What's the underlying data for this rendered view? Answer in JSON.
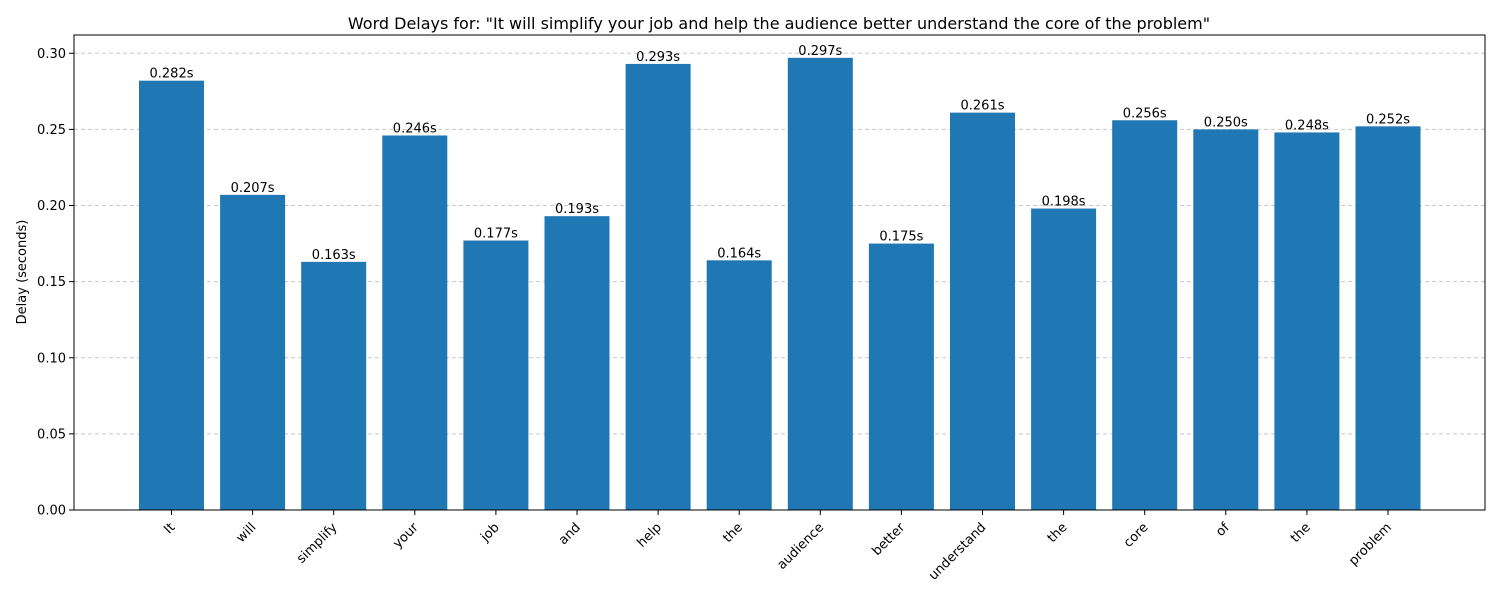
{
  "chart_data": {
    "type": "bar",
    "title": "Word Delays for: \"It will simplify your job and help the audience better understand the core of the problem\"",
    "xlabel": "",
    "ylabel": "Delay (seconds)",
    "categories": [
      "It",
      "will",
      "simplify",
      "your",
      "job",
      "and",
      "help",
      "the",
      "audience",
      "better",
      "understand",
      "the",
      "core",
      "of",
      "the",
      "problem"
    ],
    "values": [
      0.282,
      0.207,
      0.163,
      0.246,
      0.177,
      0.193,
      0.293,
      0.164,
      0.297,
      0.175,
      0.261,
      0.198,
      0.256,
      0.25,
      0.248,
      0.252
    ],
    "value_labels": [
      "0.282s",
      "0.207s",
      "0.163s",
      "0.246s",
      "0.177s",
      "0.193s",
      "0.293s",
      "0.164s",
      "0.297s",
      "0.175s",
      "0.261s",
      "0.198s",
      "0.256s",
      "0.250s",
      "0.248s",
      "0.252s"
    ],
    "ylim": [
      0,
      0.312
    ],
    "yticks": [
      0.0,
      0.05,
      0.1,
      0.15,
      0.2,
      0.25,
      0.3
    ],
    "ytick_labels": [
      "0.00",
      "0.05",
      "0.10",
      "0.15",
      "0.20",
      "0.25",
      "0.30"
    ],
    "grid": "y-dashed",
    "bar_color": "#1f77b4",
    "grid_color": "#c8c8c8"
  }
}
